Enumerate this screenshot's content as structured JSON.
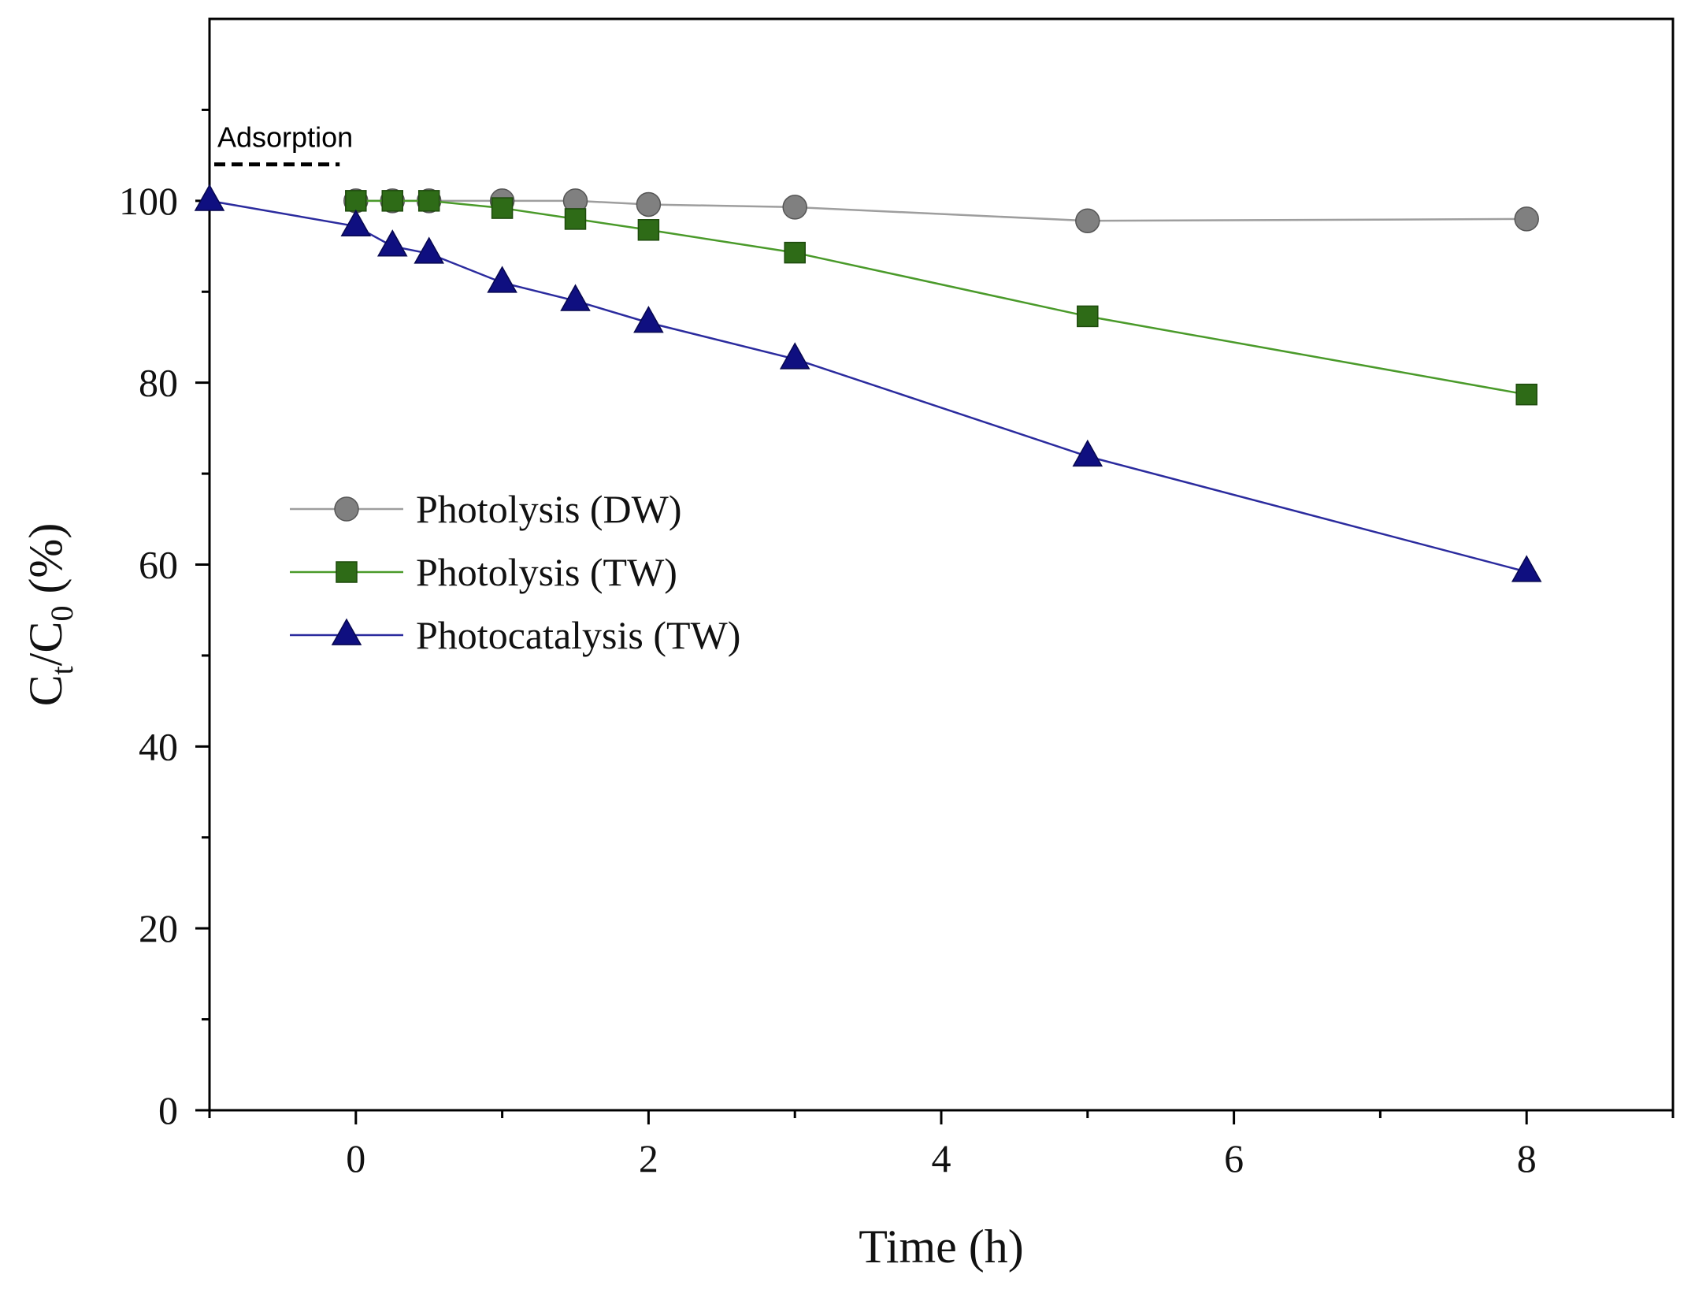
{
  "chart_data": {
    "type": "line",
    "xlabel": "Time (h)",
    "ylabel": {
      "base": "C",
      "numerator_sub": "t",
      "separator": "/",
      "denominator_base": "C",
      "denominator_sub": "0",
      "unit": " (%)"
    },
    "xlim": [
      -1,
      9
    ],
    "ylim": [
      0,
      120
    ],
    "xticks": [
      0,
      2,
      4,
      6,
      8
    ],
    "xticks_minor": [
      -1,
      1,
      3,
      5,
      7,
      9
    ],
    "yticks": [
      0,
      20,
      40,
      60,
      80,
      100
    ],
    "grid": false,
    "legend_position": "center-left",
    "annotation": {
      "text": "Adsorption",
      "x_start": -1,
      "x_end": -0.1,
      "y": 104
    },
    "series": [
      {
        "name": "Photolysis (DW)",
        "marker": "circle",
        "color": "#808080",
        "line_color": "#9e9e9e",
        "x": [
          0,
          0.25,
          0.5,
          1,
          1.5,
          2,
          3,
          5,
          8
        ],
        "y": [
          100,
          100,
          100,
          100,
          100,
          99.6,
          99.3,
          97.8,
          98.0
        ]
      },
      {
        "name": "Photolysis (TW)",
        "marker": "square",
        "color": "#2e6b17",
        "line_color": "#4a9a2a",
        "x": [
          0,
          0.25,
          0.5,
          1,
          1.5,
          2,
          3,
          5,
          8
        ],
        "y": [
          100,
          100,
          100,
          99.2,
          98.0,
          96.8,
          94.3,
          87.3,
          78.7
        ]
      },
      {
        "name": "Photocatalysis (TW)",
        "marker": "triangle",
        "color": "#0f0f80",
        "line_color": "#2b2b9e",
        "x": [
          -1,
          0,
          0.25,
          0.5,
          1,
          1.5,
          2,
          3,
          5,
          8
        ],
        "y": [
          100,
          97.2,
          95.0,
          94.2,
          91.0,
          89.0,
          86.6,
          82.6,
          71.9,
          59.2
        ]
      }
    ]
  }
}
